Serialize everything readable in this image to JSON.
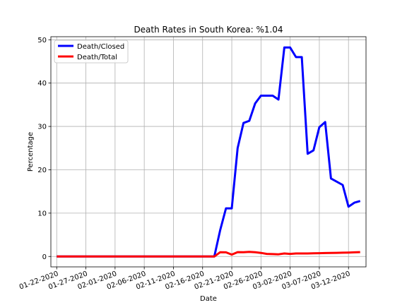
{
  "chart_data": {
    "type": "line",
    "title": "Death Rates in South Korea: %1.04",
    "xlabel": "Date",
    "ylabel": "Percentage",
    "x_tick_labels": [
      "01-22-2020",
      "01-27-2020",
      "02-01-2020",
      "02-06-2020",
      "02-11-2020",
      "02-16-2020",
      "02-21-2020",
      "02-26-2020",
      "03-02-2020",
      "03-07-2020",
      "03-12-2020"
    ],
    "x_ticks": [
      "2020-01-22",
      "2020-01-27",
      "2020-02-01",
      "2020-02-06",
      "2020-02-11",
      "2020-02-16",
      "2020-02-21",
      "2020-02-26",
      "2020-03-02",
      "2020-03-07",
      "2020-03-12"
    ],
    "xlim": [
      "2020-01-21",
      "2020-03-15"
    ],
    "ylim": [
      -2.4,
      50.7
    ],
    "y_ticks": [
      0,
      10,
      20,
      30,
      40,
      50
    ],
    "grid": true,
    "legend": "top-left",
    "series": [
      {
        "name": "Death/Closed",
        "color": "#0000ff",
        "points": [
          [
            "2020-01-22",
            0
          ],
          [
            "2020-01-23",
            0
          ],
          [
            "2020-01-24",
            0
          ],
          [
            "2020-01-25",
            0
          ],
          [
            "2020-01-26",
            0
          ],
          [
            "2020-01-27",
            0
          ],
          [
            "2020-01-28",
            0
          ],
          [
            "2020-01-29",
            0
          ],
          [
            "2020-01-30",
            0
          ],
          [
            "2020-01-31",
            0
          ],
          [
            "2020-02-03",
            0
          ],
          [
            "2020-02-04",
            0
          ],
          [
            "2020-02-05",
            0
          ],
          [
            "2020-02-06",
            0
          ],
          [
            "2020-02-07",
            0
          ],
          [
            "2020-02-08",
            0
          ],
          [
            "2020-02-09",
            0
          ],
          [
            "2020-02-10",
            0
          ],
          [
            "2020-02-11",
            0
          ],
          [
            "2020-02-12",
            0
          ],
          [
            "2020-02-13",
            0
          ],
          [
            "2020-02-14",
            0
          ],
          [
            "2020-02-15",
            0
          ],
          [
            "2020-02-16",
            0
          ],
          [
            "2020-02-17",
            0
          ],
          [
            "2020-02-18",
            0
          ],
          [
            "2020-02-19",
            6.0
          ],
          [
            "2020-02-20",
            11.1
          ],
          [
            "2020-02-21",
            11.1
          ],
          [
            "2020-02-22",
            25.0
          ],
          [
            "2020-02-23",
            30.8
          ],
          [
            "2020-02-24",
            31.3
          ],
          [
            "2020-02-25",
            35.3
          ],
          [
            "2020-02-26",
            37.1
          ],
          [
            "2020-02-27",
            37.1
          ],
          [
            "2020-02-28",
            37.1
          ],
          [
            "2020-02-29",
            36.2
          ],
          [
            "2020-03-01",
            48.2
          ],
          [
            "2020-03-02",
            48.2
          ],
          [
            "2020-03-03",
            46.0
          ],
          [
            "2020-03-04",
            46.0
          ],
          [
            "2020-03-05",
            23.7
          ],
          [
            "2020-03-06",
            24.5
          ],
          [
            "2020-03-07",
            29.8
          ],
          [
            "2020-03-08",
            31.0
          ],
          [
            "2020-03-09",
            18.0
          ],
          [
            "2020-03-11",
            16.5
          ],
          [
            "2020-03-12",
            11.5
          ],
          [
            "2020-03-13",
            12.4
          ],
          [
            "2020-03-14",
            12.8
          ]
        ]
      },
      {
        "name": "Death/Total",
        "color": "#ff0000",
        "points": [
          [
            "2020-01-22",
            0
          ],
          [
            "2020-01-23",
            0
          ],
          [
            "2020-01-24",
            0
          ],
          [
            "2020-01-25",
            0
          ],
          [
            "2020-01-26",
            0
          ],
          [
            "2020-01-27",
            0
          ],
          [
            "2020-01-28",
            0
          ],
          [
            "2020-01-29",
            0
          ],
          [
            "2020-01-30",
            0
          ],
          [
            "2020-01-31",
            0
          ],
          [
            "2020-02-01",
            0
          ],
          [
            "2020-02-02",
            0
          ],
          [
            "2020-02-03",
            0
          ],
          [
            "2020-02-04",
            0
          ],
          [
            "2020-02-05",
            0
          ],
          [
            "2020-02-06",
            0
          ],
          [
            "2020-02-07",
            0
          ],
          [
            "2020-02-08",
            0
          ],
          [
            "2020-02-09",
            0
          ],
          [
            "2020-02-10",
            0
          ],
          [
            "2020-02-11",
            0
          ],
          [
            "2020-02-12",
            0
          ],
          [
            "2020-02-13",
            0
          ],
          [
            "2020-02-14",
            0
          ],
          [
            "2020-02-15",
            0
          ],
          [
            "2020-02-16",
            0
          ],
          [
            "2020-02-17",
            0
          ],
          [
            "2020-02-18",
            0
          ],
          [
            "2020-02-19",
            0.97
          ],
          [
            "2020-02-20",
            0.96
          ],
          [
            "2020-02-21",
            0.44
          ],
          [
            "2020-02-22",
            1.0
          ],
          [
            "2020-02-23",
            0.97
          ],
          [
            "2020-02-24",
            1.05
          ],
          [
            "2020-02-25",
            0.98
          ],
          [
            "2020-02-26",
            0.82
          ],
          [
            "2020-02-27",
            0.6
          ],
          [
            "2020-02-28",
            0.55
          ],
          [
            "2020-02-29",
            0.5
          ],
          [
            "2020-03-01",
            0.7
          ],
          [
            "2020-03-02",
            0.6
          ],
          [
            "2020-03-03",
            0.7
          ],
          [
            "2020-03-04",
            0.7
          ],
          [
            "2020-03-05",
            0.7
          ],
          [
            "2020-03-06",
            0.72
          ],
          [
            "2020-03-07",
            0.76
          ],
          [
            "2020-03-08",
            0.8
          ],
          [
            "2020-03-09",
            0.82
          ],
          [
            "2020-03-10",
            0.84
          ],
          [
            "2020-03-11",
            0.88
          ],
          [
            "2020-03-12",
            0.9
          ],
          [
            "2020-03-13",
            0.95
          ],
          [
            "2020-03-14",
            1.0
          ]
        ]
      }
    ]
  }
}
